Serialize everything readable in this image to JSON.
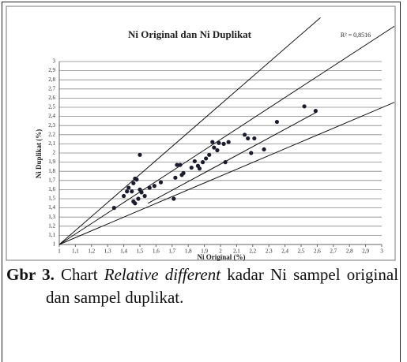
{
  "chart_data": {
    "type": "scatter",
    "title": "Ni Original dan Ni Duplikat",
    "annotation": "R² = 0,8516",
    "xlabel": "Ni Original (%)",
    "ylabel": "Ni Duplikat (%)",
    "xlim": [
      1,
      3
    ],
    "ylim": [
      1,
      3
    ],
    "xticks": [
      1,
      {
        "value": 1.1,
        "label": "1,1"
      },
      {
        "value": 1.2,
        "label": "1,2"
      },
      {
        "value": 1.3,
        "label": "1,3"
      },
      {
        "value": 1.4,
        "label": "1,4"
      },
      {
        "value": 1.5,
        "label": "1,5"
      },
      {
        "value": 1.6,
        "label": "1,6"
      },
      {
        "value": 1.7,
        "label": "1,7"
      },
      {
        "value": 1.8,
        "label": "1,8"
      },
      {
        "value": 1.9,
        "label": "1,9"
      },
      2,
      {
        "value": 2.1,
        "label": "2,1"
      },
      {
        "value": 2.2,
        "label": "2,2"
      },
      {
        "value": 2.3,
        "label": "2,3"
      },
      {
        "value": 2.4,
        "label": "2,4"
      },
      {
        "value": 2.5,
        "label": "2,5"
      },
      {
        "value": 2.6,
        "label": "2,6"
      },
      {
        "value": 2.7,
        "label": "2,7"
      },
      {
        "value": 2.8,
        "label": "2,8"
      },
      {
        "value": 2.9,
        "label": "2,9"
      },
      3
    ],
    "yticks": [
      1,
      {
        "value": 1.1,
        "label": "1,1"
      },
      {
        "value": 1.2,
        "label": "1,2"
      },
      {
        "value": 1.3,
        "label": "1,3"
      },
      {
        "value": 1.4,
        "label": "1,4"
      },
      {
        "value": 1.5,
        "label": "1,5"
      },
      {
        "value": 1.6,
        "label": "1,6"
      },
      {
        "value": 1.7,
        "label": "1,7"
      },
      {
        "value": 1.8,
        "label": "1,8"
      },
      {
        "value": 1.9,
        "label": "1,9"
      },
      2,
      {
        "value": 2.1,
        "label": "2,1"
      },
      {
        "value": 2.2,
        "label": "2,2"
      },
      {
        "value": 2.3,
        "label": "2,3"
      },
      {
        "value": 2.4,
        "label": "2,4"
      },
      {
        "value": 2.5,
        "label": "2,5"
      },
      {
        "value": 2.6,
        "label": "2,6"
      },
      {
        "value": 2.7,
        "label": "2,7"
      },
      {
        "value": 2.8,
        "label": "2,8"
      },
      {
        "value": 2.9,
        "label": "2,9"
      },
      3
    ],
    "grid": true,
    "color": "#1b1b2f",
    "x": [
      1.34,
      1.4,
      1.42,
      1.43,
      1.45,
      1.46,
      1.47,
      1.48,
      1.46,
      1.47,
      1.49,
      1.5,
      1.5,
      1.51,
      1.53,
      1.56,
      1.59,
      1.63,
      1.71,
      1.72,
      1.73,
      1.75,
      1.76,
      1.77,
      1.82,
      1.84,
      1.86,
      1.87,
      1.89,
      1.91,
      1.93,
      1.95,
      1.96,
      1.98,
      1.99,
      2.02,
      2.03,
      2.05,
      2.15,
      2.17,
      2.19,
      2.21,
      2.27,
      2.35,
      2.52,
      2.59
    ],
    "values": [
      1.4,
      1.53,
      1.58,
      1.62,
      1.58,
      1.67,
      1.72,
      1.71,
      1.47,
      1.45,
      1.5,
      1.6,
      1.98,
      1.57,
      1.53,
      1.62,
      1.64,
      1.68,
      1.5,
      1.73,
      1.87,
      1.87,
      1.76,
      1.78,
      1.84,
      1.91,
      1.86,
      1.83,
      1.9,
      1.94,
      1.98,
      2.12,
      2.06,
      2.03,
      2.11,
      2.1,
      1.9,
      2.12,
      2.2,
      2.16,
      2.0,
      2.16,
      2.04,
      2.34,
      2.51,
      2.46
    ],
    "reference_lines": [
      {
        "x": [
          1,
          2.62
        ],
        "y": [
          1,
          3.48
        ]
      },
      {
        "x": [
          1,
          3.1
        ],
        "y": [
          1,
          3.41
        ]
      },
      {
        "x": [
          1,
          3.1
        ],
        "y": [
          1,
          2.57
        ]
      },
      {
        "x": [
          1.55,
          2.6
        ],
        "y": [
          1.45,
          2.45
        ]
      }
    ]
  },
  "caption": {
    "label": "Gbr 3.",
    "text_1": "Chart",
    "emphasis": "Relative different",
    "text_2": "kadar Ni sampel original dan sampel duplikat."
  }
}
